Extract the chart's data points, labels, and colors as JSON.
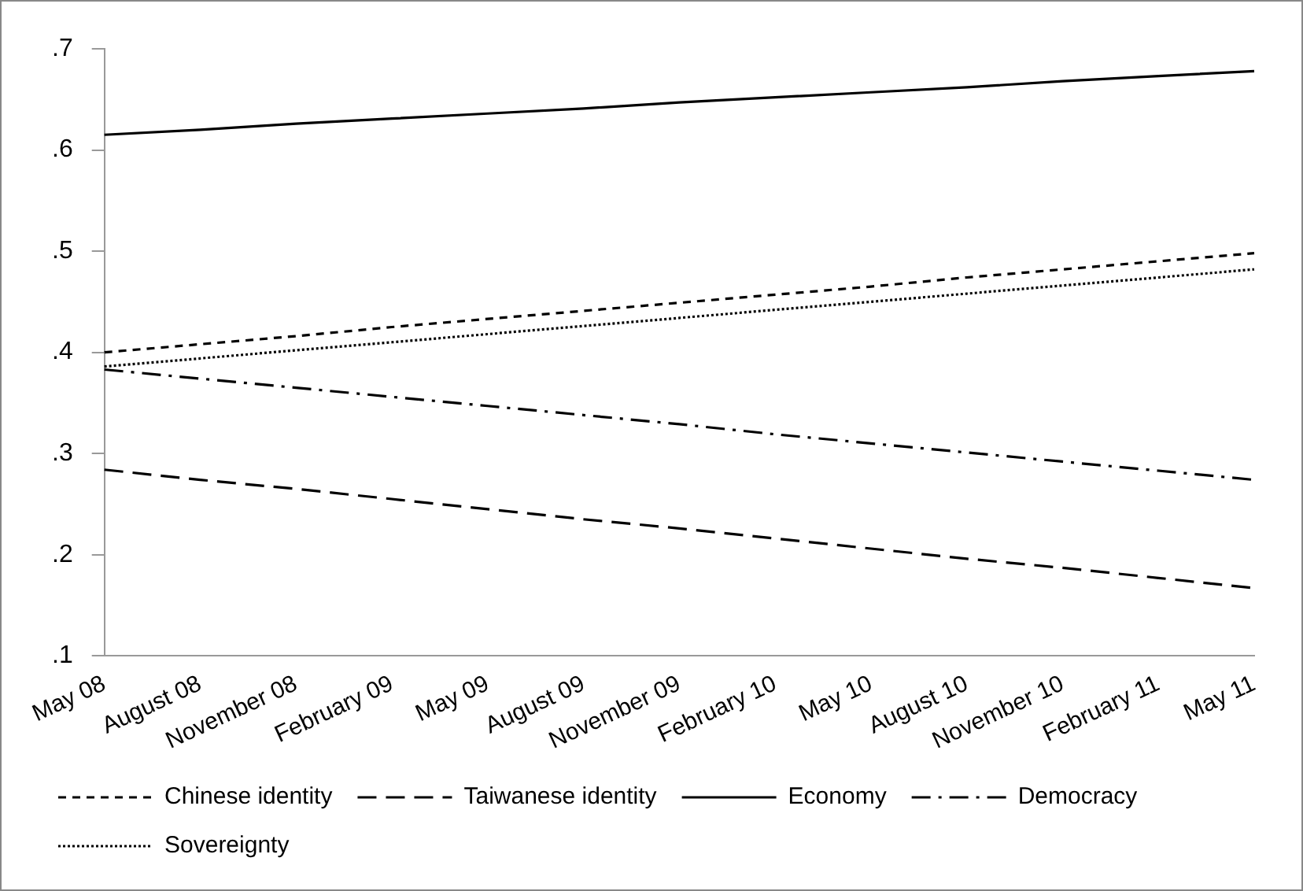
{
  "chart_data": {
    "type": "line",
    "categories": [
      "May 08",
      "August 08",
      "November 08",
      "February 09",
      "May 09",
      "August 09",
      "November 09",
      "February 10",
      "May 10",
      "August 10",
      "November 10",
      "February 11",
      "May 11"
    ],
    "series": [
      {
        "name": "Chinese identity",
        "color": "#000000",
        "line_style": "dashed",
        "values": [
          0.4,
          0.408,
          0.416,
          0.425,
          0.433,
          0.441,
          0.449,
          0.457,
          0.465,
          0.474,
          0.482,
          0.49,
          0.498
        ]
      },
      {
        "name": "Taiwanese identity",
        "color": "#000000",
        "line_style": "longdash",
        "values": [
          0.284,
          0.274,
          0.265,
          0.255,
          0.245,
          0.235,
          0.226,
          0.216,
          0.206,
          0.196,
          0.187,
          0.177,
          0.167
        ]
      },
      {
        "name": "Economy",
        "color": "#000000",
        "line_style": "solid",
        "values": [
          0.615,
          0.62,
          0.626,
          0.631,
          0.636,
          0.641,
          0.647,
          0.652,
          0.657,
          0.662,
          0.668,
          0.673,
          0.678
        ]
      },
      {
        "name": "Democracy",
        "color": "#000000",
        "line_style": "dashdot",
        "values": [
          0.383,
          0.374,
          0.365,
          0.356,
          0.347,
          0.338,
          0.329,
          0.319,
          0.31,
          0.301,
          0.292,
          0.283,
          0.274
        ]
      },
      {
        "name": "Sovereignty",
        "color": "#000000",
        "line_style": "dotted",
        "values": [
          0.386,
          0.394,
          0.402,
          0.41,
          0.418,
          0.426,
          0.434,
          0.442,
          0.45,
          0.458,
          0.466,
          0.474,
          0.482
        ]
      }
    ],
    "ylim": [
      0.1,
      0.7
    ],
    "yticks": [
      {
        "value": 0.1,
        "label": ".1"
      },
      {
        "value": 0.2,
        "label": ".2"
      },
      {
        "value": 0.3,
        "label": ".3"
      },
      {
        "value": 0.4,
        "label": ".4"
      },
      {
        "value": 0.5,
        "label": ".5"
      },
      {
        "value": 0.6,
        "label": ".6"
      },
      {
        "value": 0.7,
        "label": ".7"
      }
    ],
    "grid": false,
    "legend": "bottom",
    "marker": "none"
  }
}
